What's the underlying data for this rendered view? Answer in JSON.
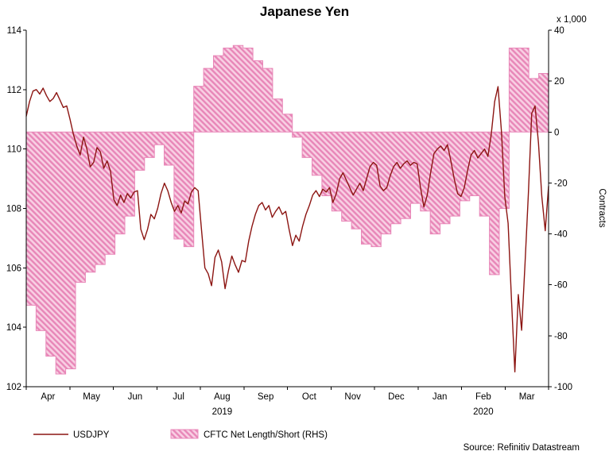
{
  "title": "Japanese Yen",
  "axes": {
    "right_unit": "x 1,000",
    "right_title": "Contracts"
  },
  "source": "Source: Refinitiv Datastream",
  "legend": [
    {
      "label": "USDJPY",
      "type": "line"
    },
    {
      "label": "CFTC Net Length/Short (RHS)",
      "type": "area"
    }
  ],
  "colors": {
    "line": "#8c1512",
    "area_light": "#f8cfe3",
    "area_dark": "#e887b8",
    "area_edge": "#e887b8",
    "axis": "#000000"
  },
  "chart_data": {
    "type": "line+area",
    "title": "Japanese Yen",
    "months": [
      "Apr",
      "May",
      "Jun",
      "Jul",
      "Aug",
      "Sep",
      "Oct",
      "Nov",
      "Dec",
      "Jan",
      "Feb",
      "Mar"
    ],
    "year_labels": [
      {
        "text": "2019",
        "month_index": 4
      },
      {
        "text": "2020",
        "month_index": 10
      }
    ],
    "left_axis": {
      "min": 102,
      "max": 114,
      "tick_step": 2
    },
    "right_axis": {
      "min": -100,
      "max": 40,
      "tick_step": 20,
      "unit": "x 1,000",
      "title": "Contracts"
    },
    "series": [
      {
        "name": "USDJPY",
        "type": "line",
        "axis": "left",
        "color": "#8c1512",
        "values": [
          111.1,
          111.6,
          111.95,
          112.0,
          111.85,
          112.05,
          111.8,
          111.6,
          111.7,
          111.9,
          111.65,
          111.4,
          111.45,
          111.0,
          110.5,
          110.1,
          109.8,
          110.4,
          110.0,
          109.4,
          109.55,
          110.05,
          109.9,
          109.35,
          109.6,
          109.25,
          108.3,
          108.1,
          108.45,
          108.2,
          108.5,
          108.35,
          108.55,
          108.6,
          107.3,
          106.95,
          107.3,
          107.8,
          107.65,
          108.0,
          108.5,
          108.85,
          108.6,
          108.2,
          107.9,
          108.1,
          107.85,
          108.25,
          108.15,
          108.55,
          108.7,
          108.6,
          107.3,
          106.0,
          105.8,
          105.4,
          106.35,
          106.6,
          106.2,
          105.3,
          105.9,
          106.4,
          106.1,
          105.85,
          106.25,
          106.2,
          106.9,
          107.4,
          107.8,
          108.1,
          108.2,
          107.95,
          108.1,
          107.7,
          107.9,
          108.05,
          107.8,
          107.9,
          107.3,
          106.75,
          107.1,
          106.9,
          107.4,
          107.8,
          108.1,
          108.45,
          108.6,
          108.4,
          108.65,
          108.55,
          108.7,
          108.2,
          108.5,
          109.0,
          109.2,
          108.95,
          108.7,
          108.45,
          108.65,
          108.85,
          108.6,
          109.0,
          109.4,
          109.55,
          109.45,
          108.75,
          108.6,
          108.7,
          109.1,
          109.4,
          109.55,
          109.35,
          109.5,
          109.6,
          109.45,
          109.55,
          109.5,
          108.7,
          108.05,
          108.45,
          109.2,
          109.85,
          110.0,
          110.1,
          109.95,
          110.15,
          109.6,
          109.0,
          108.5,
          108.4,
          108.7,
          109.3,
          109.8,
          109.95,
          109.7,
          109.85,
          110.0,
          109.75,
          110.5,
          111.6,
          112.1,
          110.6,
          108.4,
          107.5,
          104.9,
          102.5,
          105.1,
          103.9,
          106.1,
          108.5,
          111.2,
          111.45,
          110.2,
          108.4,
          107.25,
          108.75
        ]
      },
      {
        "name": "CFTC Net Length/Short (RHS)",
        "type": "step-area",
        "axis": "right",
        "frequency": "weekly",
        "color": "#ef9cc5",
        "values": [
          -68,
          -78,
          -88,
          -95,
          -93,
          -59,
          -55,
          -52,
          -48,
          -40,
          -33,
          -15,
          -10,
          -5,
          -13,
          -42,
          -45,
          18,
          25,
          30,
          33,
          34,
          33,
          28,
          25,
          13,
          7,
          -2,
          -10,
          -17,
          -25,
          -31,
          -35,
          -38,
          -44,
          -45,
          -40,
          -36,
          -34,
          -28,
          -31,
          -40,
          -36,
          -33,
          -27,
          -25,
          -33,
          -56,
          -30,
          33,
          33,
          21,
          23
        ]
      }
    ]
  }
}
